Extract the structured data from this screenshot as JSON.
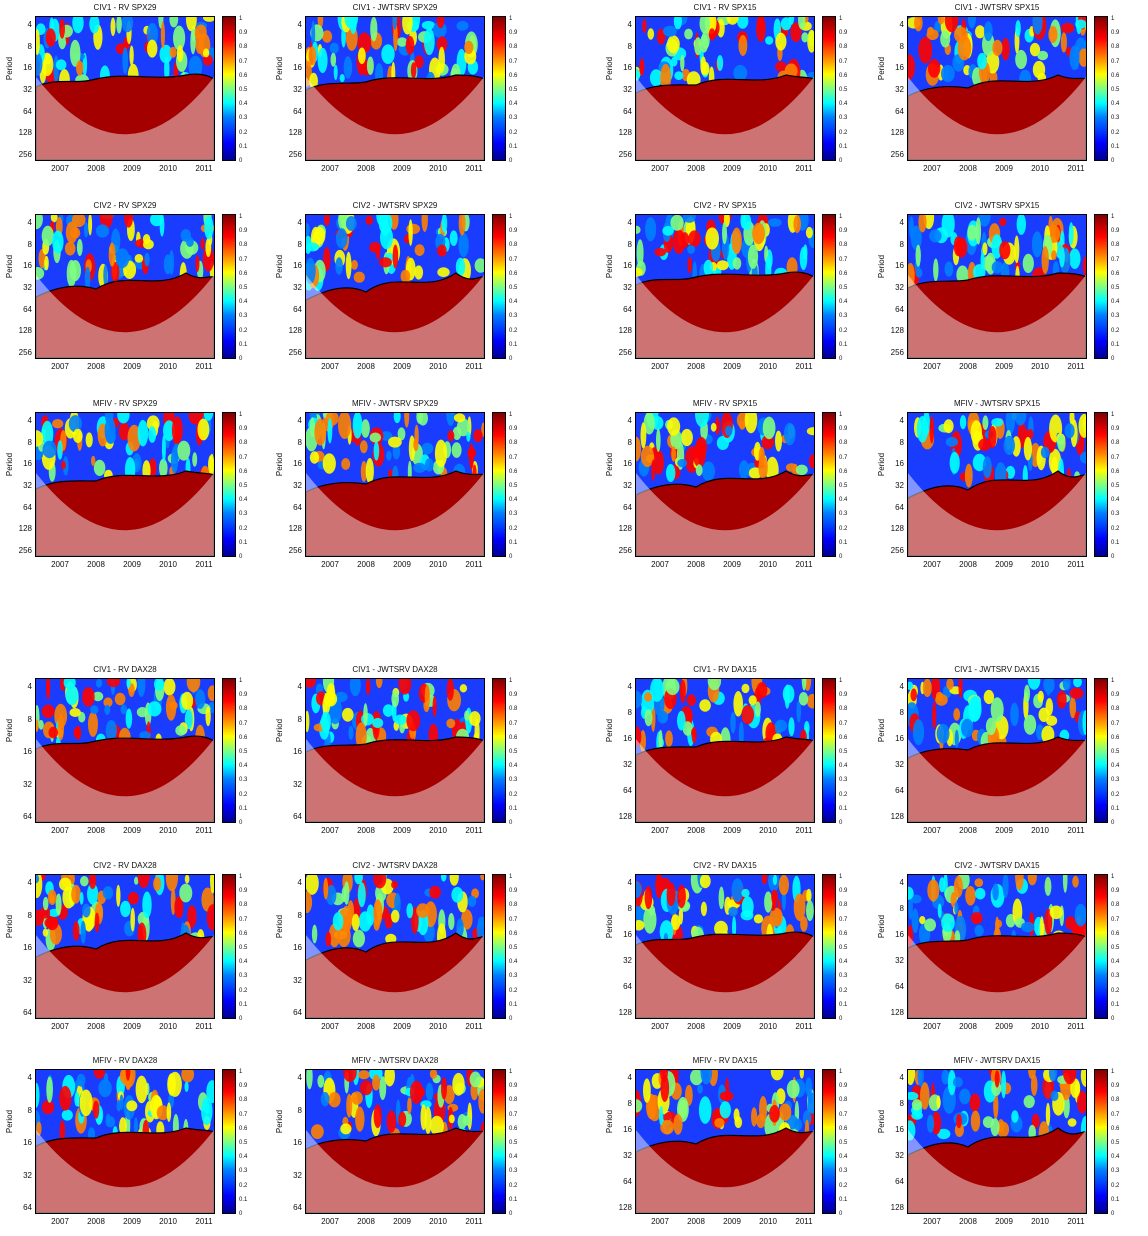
{
  "figure": {
    "ylabel": "Period",
    "x_ticks": [
      "2007",
      "2008",
      "2009",
      "2010",
      "2011"
    ],
    "colorbar_ticks": [
      "0",
      "0.1",
      "0.2",
      "0.3",
      "0.4",
      "0.5",
      "0.6",
      "0.7",
      "0.8",
      "0.9",
      "1"
    ],
    "colormap": [
      "#00008f",
      "#0000ff",
      "#0080ff",
      "#00ffff",
      "#80ff80",
      "#ffff00",
      "#ff8000",
      "#ff0000",
      "#800000"
    ]
  },
  "chart_data": [
    {
      "type": "heatmap",
      "title": "CIV1 - RV  SPX29",
      "y_ticks": [
        "4",
        "8",
        "16",
        "32",
        "64",
        "128",
        "256"
      ],
      "x_ticks": [
        "2007",
        "2008",
        "2009",
        "2010",
        "2011"
      ],
      "ylabel": "Period",
      "colorbar_range": [
        0,
        1
      ]
    },
    {
      "type": "heatmap",
      "title": "CIV1 - JWTSRV  SPX29",
      "y_ticks": [
        "4",
        "8",
        "16",
        "32",
        "64",
        "128",
        "256"
      ],
      "x_ticks": [
        "2007",
        "2008",
        "2009",
        "2010",
        "2011"
      ],
      "ylabel": "Period",
      "colorbar_range": [
        0,
        1
      ]
    },
    {
      "type": "heatmap",
      "title": "CIV1 - RV  SPX15",
      "y_ticks": [
        "4",
        "8",
        "16",
        "32",
        "64",
        "128",
        "256"
      ],
      "x_ticks": [
        "2007",
        "2008",
        "2009",
        "2010",
        "2011"
      ],
      "ylabel": "Period",
      "colorbar_range": [
        0,
        1
      ]
    },
    {
      "type": "heatmap",
      "title": "CIV1 - JWTSRV  SPX15",
      "y_ticks": [
        "4",
        "8",
        "16",
        "32",
        "64",
        "128",
        "256"
      ],
      "x_ticks": [
        "2007",
        "2008",
        "2009",
        "2010",
        "2011"
      ],
      "ylabel": "Period",
      "colorbar_range": [
        0,
        1
      ]
    },
    {
      "type": "heatmap",
      "title": "CIV2 - RV  SPX29",
      "y_ticks": [
        "4",
        "8",
        "16",
        "32",
        "64",
        "128",
        "256"
      ],
      "x_ticks": [
        "2007",
        "2008",
        "2009",
        "2010",
        "2011"
      ],
      "ylabel": "Period",
      "colorbar_range": [
        0,
        1
      ]
    },
    {
      "type": "heatmap",
      "title": "CIV2 - JWTSRV  SPX29",
      "y_ticks": [
        "4",
        "8",
        "16",
        "32",
        "64",
        "128",
        "256"
      ],
      "x_ticks": [
        "2007",
        "2008",
        "2009",
        "2010",
        "2011"
      ],
      "ylabel": "Period",
      "colorbar_range": [
        0,
        1
      ]
    },
    {
      "type": "heatmap",
      "title": "CIV2 - RV  SPX15",
      "y_ticks": [
        "4",
        "8",
        "16",
        "32",
        "64",
        "128",
        "256"
      ],
      "x_ticks": [
        "2007",
        "2008",
        "2009",
        "2010",
        "2011"
      ],
      "ylabel": "Period",
      "colorbar_range": [
        0,
        1
      ]
    },
    {
      "type": "heatmap",
      "title": "CIV2 - JWTSRV  SPX15",
      "y_ticks": [
        "4",
        "8",
        "16",
        "32",
        "64",
        "128",
        "256"
      ],
      "x_ticks": [
        "2007",
        "2008",
        "2009",
        "2010",
        "2011"
      ],
      "ylabel": "Period",
      "colorbar_range": [
        0,
        1
      ]
    },
    {
      "type": "heatmap",
      "title": "MFIV - RV  SPX29",
      "y_ticks": [
        "4",
        "8",
        "16",
        "32",
        "64",
        "128",
        "256"
      ],
      "x_ticks": [
        "2007",
        "2008",
        "2009",
        "2010",
        "2011"
      ],
      "ylabel": "Period",
      "colorbar_range": [
        0,
        1
      ]
    },
    {
      "type": "heatmap",
      "title": "MFIV - JWTSRV  SPX29",
      "y_ticks": [
        "4",
        "8",
        "16",
        "32",
        "64",
        "128",
        "256"
      ],
      "x_ticks": [
        "2007",
        "2008",
        "2009",
        "2010",
        "2011"
      ],
      "ylabel": "Period",
      "colorbar_range": [
        0,
        1
      ]
    },
    {
      "type": "heatmap",
      "title": "MFIV - RV  SPX15",
      "y_ticks": [
        "4",
        "8",
        "16",
        "32",
        "64",
        "128",
        "256"
      ],
      "x_ticks": [
        "2007",
        "2008",
        "2009",
        "2010",
        "2011"
      ],
      "ylabel": "Period",
      "colorbar_range": [
        0,
        1
      ]
    },
    {
      "type": "heatmap",
      "title": "MFIV - JWTSRV  SPX15",
      "y_ticks": [
        "4",
        "8",
        "16",
        "32",
        "64",
        "128",
        "256"
      ],
      "x_ticks": [
        "2007",
        "2008",
        "2009",
        "2010",
        "2011"
      ],
      "ylabel": "Period",
      "colorbar_range": [
        0,
        1
      ]
    },
    {
      "type": "heatmap",
      "title": "CIV1 - RV  DAX28",
      "y_ticks": [
        "4",
        "8",
        "16",
        "32",
        "64"
      ],
      "x_ticks": [
        "2007",
        "2008",
        "2009",
        "2010",
        "2011"
      ],
      "ylabel": "Period",
      "colorbar_range": [
        0,
        1
      ]
    },
    {
      "type": "heatmap",
      "title": "CIV1 - JWTSRV  DAX28",
      "y_ticks": [
        "4",
        "8",
        "16",
        "32",
        "64"
      ],
      "x_ticks": [
        "2007",
        "2008",
        "2009",
        "2010",
        "2011"
      ],
      "ylabel": "Period",
      "colorbar_range": [
        0,
        1
      ]
    },
    {
      "type": "heatmap",
      "title": "CIV1 - RV  DAX15",
      "y_ticks": [
        "4",
        "8",
        "16",
        "32",
        "64",
        "128"
      ],
      "x_ticks": [
        "2007",
        "2008",
        "2009",
        "2010",
        "2011"
      ],
      "ylabel": "Period",
      "colorbar_range": [
        0,
        1
      ]
    },
    {
      "type": "heatmap",
      "title": "CIV1 - JWTSRV  DAX15",
      "y_ticks": [
        "4",
        "8",
        "16",
        "32",
        "64",
        "128"
      ],
      "x_ticks": [
        "2007",
        "2008",
        "2009",
        "2010",
        "2011"
      ],
      "ylabel": "Period",
      "colorbar_range": [
        0,
        1
      ]
    },
    {
      "type": "heatmap",
      "title": "CIV2 - RV  DAX28",
      "y_ticks": [
        "4",
        "8",
        "16",
        "32",
        "64"
      ],
      "x_ticks": [
        "2007",
        "2008",
        "2009",
        "2010",
        "2011"
      ],
      "ylabel": "Period",
      "colorbar_range": [
        0,
        1
      ]
    },
    {
      "type": "heatmap",
      "title": "CIV2 - JWTSRV  DAX28",
      "y_ticks": [
        "4",
        "8",
        "16",
        "32",
        "64"
      ],
      "x_ticks": [
        "2007",
        "2008",
        "2009",
        "2010",
        "2011"
      ],
      "ylabel": "Period",
      "colorbar_range": [
        0,
        1
      ]
    },
    {
      "type": "heatmap",
      "title": "CIV2 - RV  DAX15",
      "y_ticks": [
        "4",
        "8",
        "16",
        "32",
        "64",
        "128"
      ],
      "x_ticks": [
        "2007",
        "2008",
        "2009",
        "2010",
        "2011"
      ],
      "ylabel": "Period",
      "colorbar_range": [
        0,
        1
      ]
    },
    {
      "type": "heatmap",
      "title": "CIV2 - JWTSRV  DAX15",
      "y_ticks": [
        "4",
        "8",
        "16",
        "32",
        "64",
        "128"
      ],
      "x_ticks": [
        "2007",
        "2008",
        "2009",
        "2010",
        "2011"
      ],
      "ylabel": "Period",
      "colorbar_range": [
        0,
        1
      ]
    },
    {
      "type": "heatmap",
      "title": "MFIV - RV  DAX28",
      "y_ticks": [
        "4",
        "8",
        "16",
        "32",
        "64"
      ],
      "x_ticks": [
        "2007",
        "2008",
        "2009",
        "2010",
        "2011"
      ],
      "ylabel": "Period",
      "colorbar_range": [
        0,
        1
      ]
    },
    {
      "type": "heatmap",
      "title": "MFIV - JWTSRV  DAX28",
      "y_ticks": [
        "4",
        "8",
        "16",
        "32",
        "64"
      ],
      "x_ticks": [
        "2007",
        "2008",
        "2009",
        "2010",
        "2011"
      ],
      "ylabel": "Period",
      "colorbar_range": [
        0,
        1
      ]
    },
    {
      "type": "heatmap",
      "title": "MFIV - RV  DAX15",
      "y_ticks": [
        "4",
        "8",
        "16",
        "32",
        "64",
        "128"
      ],
      "x_ticks": [
        "2007",
        "2008",
        "2009",
        "2010",
        "2011"
      ],
      "ylabel": "Period",
      "colorbar_range": [
        0,
        1
      ]
    },
    {
      "type": "heatmap",
      "title": "MFIV - JWTSRV  DAX15",
      "y_ticks": [
        "4",
        "8",
        "16",
        "32",
        "64",
        "128"
      ],
      "x_ticks": [
        "2007",
        "2008",
        "2009",
        "2010",
        "2011"
      ],
      "ylabel": "Period",
      "colorbar_range": [
        0,
        1
      ]
    }
  ]
}
